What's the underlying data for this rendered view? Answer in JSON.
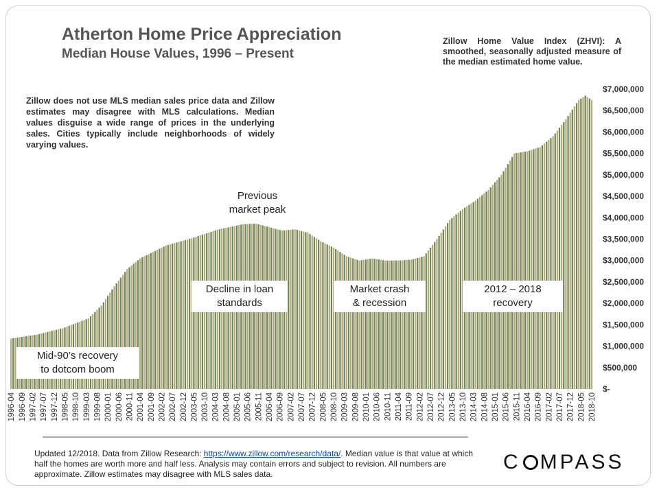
{
  "header": {
    "title": "Atherton Home Price Appreciation",
    "subtitle": "Median House Values, 1996 – Present",
    "zhvi_note": "Zillow Home Value Index (ZHVI): A smoothed, seasonally adjusted measure of the median estimated home value."
  },
  "disclaimer": "Zillow does not use MLS median sales price data and Zillow estimates may disagree with MLS calculations. Median values disguise a wide range of prices in the underlying sales. Cities typically include neighborhoods of widely varying values.",
  "annotations": {
    "recovery_90s_line1": "Mid-90’s recovery",
    "recovery_90s_line2": "to dotcom boom",
    "decline_line1": "Decline in loan",
    "decline_line2": "standards",
    "peak_line1": "Previous",
    "peak_line2": "market peak",
    "crash_line1": "Market crash",
    "crash_line2": "& recession",
    "recovery_line1": "2012 – 2018",
    "recovery_line2": "recovery"
  },
  "footer": {
    "text_before_link": "Updated 12/2018. Data from Zillow Research: ",
    "link": "https://www.zillow.com/research/data/",
    "text_after_link": ". Median value is that value at which half the homes are worth more and half less. Analysis may contain errors and subject to revision. All numbers are approximate. Zillow estimates may disagree with MLS sales data."
  },
  "logo": {
    "before": "C",
    "after": "MPASS"
  },
  "colors": {
    "bar_light": "#b7ab7f",
    "bar_dark": "#6d8755",
    "plot_bg": "#ffffff",
    "axis_text": "#333333"
  },
  "chart_data": {
    "type": "bar",
    "xlabel": "",
    "ylabel": "",
    "ylim": [
      0,
      7000000
    ],
    "yticks": [
      0,
      500000,
      1000000,
      1500000,
      2000000,
      2500000,
      3000000,
      3500000,
      4000000,
      4500000,
      5000000,
      5500000,
      6000000,
      6500000,
      7000000
    ],
    "ytick_labels": [
      "$-",
      "$500,000",
      "$1,000,000",
      "$1,500,000",
      "$2,000,000",
      "$2,500,000",
      "$3,000,000",
      "$3,500,000",
      "$4,000,000",
      "$4,500,000",
      "$5,000,000",
      "$5,500,000",
      "$6,000,000",
      "$6,500,000",
      "$7,000,000"
    ],
    "x_tick_labels": [
      "1996-04",
      "1996-09",
      "1997-02",
      "1997-07",
      "1997-12",
      "1998-05",
      "1998-10",
      "1999-03",
      "1999-08",
      "2000-01",
      "2000-06",
      "2000-11",
      "2001-04",
      "2001-09",
      "2002-02",
      "2002-07",
      "2002-12",
      "2003-05",
      "2003-10",
      "2004-03",
      "2004-08",
      "2005-01",
      "2005-06",
      "2005-11",
      "2006-04",
      "2006-09",
      "2007-02",
      "2007-07",
      "2007-12",
      "2008-05",
      "2008-10",
      "2009-03",
      "2009-08",
      "2010-01",
      "2010-06",
      "2010-11",
      "2011-04",
      "2011-09",
      "2012-02",
      "2012-07",
      "2012-12",
      "2013-05",
      "2013-10",
      "2014-03",
      "2014-08",
      "2015-01",
      "2015-06",
      "2015-11",
      "2016-04",
      "2016-09",
      "2017-02",
      "2017-07",
      "2017-12",
      "2018-05",
      "2018-10"
    ],
    "anchor_dates": [
      "1996-04",
      "1997-04",
      "1998-04",
      "1999-04",
      "1999-10",
      "2000-04",
      "2000-10",
      "2001-04",
      "2002-04",
      "2003-04",
      "2004-04",
      "2005-04",
      "2005-10",
      "2006-04",
      "2006-10",
      "2007-04",
      "2007-10",
      "2008-04",
      "2008-10",
      "2009-04",
      "2009-10",
      "2010-04",
      "2010-10",
      "2011-04",
      "2011-10",
      "2012-04",
      "2012-10",
      "2013-04",
      "2013-10",
      "2014-04",
      "2014-10",
      "2015-04",
      "2015-10",
      "2016-04",
      "2016-10",
      "2017-04",
      "2017-10",
      "2018-04",
      "2018-07",
      "2018-10"
    ],
    "anchor_values": [
      1180000,
      1270000,
      1420000,
      1650000,
      1950000,
      2400000,
      2800000,
      3050000,
      3350000,
      3520000,
      3720000,
      3850000,
      3860000,
      3780000,
      3700000,
      3730000,
      3650000,
      3450000,
      3300000,
      3100000,
      3000000,
      3050000,
      3000000,
      3000000,
      3020000,
      3100000,
      3500000,
      3950000,
      4200000,
      4400000,
      4650000,
      5000000,
      5500000,
      5550000,
      5650000,
      5900000,
      6300000,
      6750000,
      6850000,
      6750000
    ]
  }
}
